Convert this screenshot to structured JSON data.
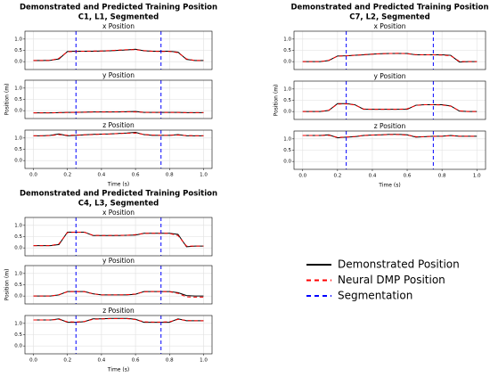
{
  "chart_data": [
    {
      "type": "line",
      "title": [
        "Demonstrated and Predicted Training Position",
        "C1, L1, Segmented"
      ],
      "xlabel": "Time (s)",
      "ylabel": "Position (m)",
      "x": [
        0,
        0.05,
        0.1,
        0.15,
        0.2,
        0.25,
        0.3,
        0.35,
        0.4,
        0.45,
        0.5,
        0.55,
        0.6,
        0.65,
        0.7,
        0.75,
        0.8,
        0.85,
        0.9,
        0.95,
        1.0
      ],
      "xlim": [
        -0.05,
        1.05
      ],
      "xticks": [
        {
          "value": 0,
          "label": "0.0"
        },
        0.2,
        0.4,
        0.6,
        0.8,
        {
          "value": 1,
          "label": "1.0"
        }
      ],
      "grid": true,
      "panels": [
        {
          "title": "x Position",
          "ylim": [
            -0.35,
            1.35
          ],
          "yticks": [
            {
              "value": 0,
              "label": "0.0"
            },
            0.5,
            {
              "value": 1,
              "label": "1.0"
            }
          ],
          "series": [
            {
              "name": "Demonstrated Position",
              "color": "#000000",
              "dash": "solid",
              "values": [
                0.05,
                0.05,
                0.06,
                0.12,
                0.45,
                0.46,
                0.46,
                0.46,
                0.47,
                0.48,
                0.5,
                0.52,
                0.55,
                0.48,
                0.46,
                0.46,
                0.46,
                0.42,
                0.1,
                0.05,
                0.05
              ]
            },
            {
              "name": "Neural DMP Position",
              "color": "#ff0000",
              "dash": "dashed",
              "values": [
                0.05,
                0.05,
                0.05,
                0.15,
                0.44,
                0.45,
                0.46,
                0.47,
                0.47,
                0.49,
                0.51,
                0.53,
                0.53,
                0.49,
                0.46,
                0.45,
                0.45,
                0.4,
                0.12,
                0.05,
                0.05
              ]
            }
          ],
          "segmentation": {
            "name": "Segmentation",
            "color": "#0000ff",
            "dash": "dashed",
            "x": [
              0.25,
              0.75
            ]
          }
        },
        {
          "title": "y Position",
          "ylim": [
            -0.35,
            1.35
          ],
          "yticks": [
            {
              "value": 0,
              "label": "0.0"
            },
            0.5,
            {
              "value": 1,
              "label": "1.0"
            }
          ],
          "series": [
            {
              "name": "Demonstrated Position",
              "color": "#000000",
              "dash": "solid",
              "values": [
                -0.1,
                -0.1,
                -0.1,
                -0.09,
                -0.08,
                -0.08,
                -0.07,
                -0.06,
                -0.06,
                -0.06,
                -0.06,
                -0.05,
                -0.04,
                -0.08,
                -0.08,
                -0.08,
                -0.08,
                -0.08,
                -0.09,
                -0.09,
                -0.09
              ]
            },
            {
              "name": "Neural DMP Position",
              "color": "#ff0000",
              "dash": "dashed",
              "values": [
                -0.1,
                -0.1,
                -0.1,
                -0.09,
                -0.08,
                -0.07,
                -0.07,
                -0.06,
                -0.06,
                -0.06,
                -0.05,
                -0.05,
                -0.06,
                -0.07,
                -0.08,
                -0.08,
                -0.08,
                -0.08,
                -0.09,
                -0.09,
                -0.09
              ]
            }
          ],
          "segmentation": {
            "name": "Segmentation",
            "color": "#0000ff",
            "dash": "dashed",
            "x": [
              0.25,
              0.75
            ]
          }
        },
        {
          "title": "z Position",
          "ylim": [
            -0.35,
            1.35
          ],
          "yticks": [
            {
              "value": 0,
              "label": "0.0"
            },
            0.5,
            {
              "value": 1,
              "label": "1.0"
            }
          ],
          "series": [
            {
              "name": "Demonstrated Position",
              "color": "#000000",
              "dash": "solid",
              "values": [
                1.1,
                1.1,
                1.12,
                1.18,
                1.1,
                1.12,
                1.14,
                1.16,
                1.17,
                1.18,
                1.2,
                1.22,
                1.25,
                1.15,
                1.12,
                1.12,
                1.12,
                1.15,
                1.1,
                1.1,
                1.1
              ]
            },
            {
              "name": "Neural DMP Position",
              "color": "#ff0000",
              "dash": "dashed",
              "values": [
                1.1,
                1.1,
                1.11,
                1.15,
                1.12,
                1.13,
                1.14,
                1.15,
                1.17,
                1.18,
                1.2,
                1.21,
                1.22,
                1.16,
                1.13,
                1.12,
                1.12,
                1.13,
                1.11,
                1.1,
                1.1
              ]
            }
          ],
          "segmentation": {
            "name": "Segmentation",
            "color": "#0000ff",
            "dash": "dashed",
            "x": [
              0.25,
              0.75
            ]
          }
        }
      ]
    },
    {
      "type": "line",
      "title": [
        "Demonstrated and Predicted Training Position",
        "C7, L2, Segmented"
      ],
      "xlabel": "Time (s)",
      "ylabel": "Position (m)",
      "x": [
        0,
        0.05,
        0.1,
        0.15,
        0.2,
        0.25,
        0.3,
        0.35,
        0.4,
        0.45,
        0.5,
        0.55,
        0.6,
        0.65,
        0.7,
        0.75,
        0.8,
        0.85,
        0.9,
        0.95,
        1.0
      ],
      "xlim": [
        -0.05,
        1.05
      ],
      "xticks": [
        {
          "value": 0,
          "label": "0.0"
        },
        0.2,
        0.4,
        0.6,
        0.8,
        {
          "value": 1,
          "label": "1.0"
        }
      ],
      "grid": true,
      "panels": [
        {
          "title": "x Position",
          "ylim": [
            -0.35,
            1.35
          ],
          "yticks": [
            {
              "value": 0,
              "label": "0.0"
            },
            0.5,
            {
              "value": 1,
              "label": "1.0"
            }
          ],
          "series": [
            {
              "name": "Demonstrated Position",
              "color": "#000000",
              "dash": "solid",
              "values": [
                0,
                0,
                0,
                0.05,
                0.25,
                0.26,
                0.28,
                0.3,
                0.33,
                0.35,
                0.36,
                0.36,
                0.36,
                0.3,
                0.3,
                0.3,
                0.3,
                0.28,
                -0.02,
                0,
                0
              ]
            },
            {
              "name": "Neural DMP Position",
              "color": "#ff0000",
              "dash": "dashed",
              "values": [
                0,
                0,
                0,
                0.06,
                0.24,
                0.26,
                0.28,
                0.31,
                0.33,
                0.35,
                0.36,
                0.37,
                0.35,
                0.31,
                0.3,
                0.3,
                0.29,
                0.26,
                0.01,
                0,
                0
              ]
            }
          ],
          "segmentation": {
            "name": "Segmentation",
            "color": "#0000ff",
            "dash": "dashed",
            "x": [
              0.25,
              0.75
            ]
          }
        },
        {
          "title": "y Position",
          "ylim": [
            -0.35,
            1.35
          ],
          "yticks": [
            {
              "value": 0,
              "label": "0.0"
            },
            0.5,
            {
              "value": 1,
              "label": "1.0"
            }
          ],
          "series": [
            {
              "name": "Demonstrated Position",
              "color": "#000000",
              "dash": "solid",
              "values": [
                0,
                0,
                0,
                0.05,
                0.35,
                0.35,
                0.3,
                0.1,
                0.1,
                0.1,
                0.1,
                0.1,
                0.1,
                0.28,
                0.3,
                0.3,
                0.3,
                0.25,
                0.02,
                0,
                0
              ]
            },
            {
              "name": "Neural DMP Position",
              "color": "#ff0000",
              "dash": "dashed",
              "values": [
                0,
                0,
                0,
                0.06,
                0.33,
                0.34,
                0.29,
                0.11,
                0.1,
                0.1,
                0.1,
                0.1,
                0.12,
                0.27,
                0.3,
                0.3,
                0.29,
                0.24,
                0.03,
                0,
                0
              ]
            }
          ],
          "segmentation": {
            "name": "Segmentation",
            "color": "#0000ff",
            "dash": "dashed",
            "x": [
              0.25,
              0.75
            ]
          }
        },
        {
          "title": "z Position",
          "ylim": [
            -0.35,
            1.35
          ],
          "yticks": [
            {
              "value": 0,
              "label": "0.0"
            },
            0.5,
            {
              "value": 1,
              "label": "1.0"
            }
          ],
          "series": [
            {
              "name": "Demonstrated Position",
              "color": "#000000",
              "dash": "solid",
              "values": [
                1.15,
                1.15,
                1.15,
                1.18,
                1.05,
                1.08,
                1.1,
                1.15,
                1.17,
                1.18,
                1.2,
                1.2,
                1.18,
                1.08,
                1.1,
                1.12,
                1.12,
                1.15,
                1.12,
                1.12,
                1.12
              ]
            },
            {
              "name": "Neural DMP Position",
              "color": "#ff0000",
              "dash": "dashed",
              "values": [
                1.15,
                1.15,
                1.15,
                1.16,
                1.07,
                1.08,
                1.11,
                1.15,
                1.17,
                1.18,
                1.19,
                1.19,
                1.17,
                1.1,
                1.1,
                1.11,
                1.12,
                1.14,
                1.12,
                1.12,
                1.12
              ]
            }
          ],
          "segmentation": {
            "name": "Segmentation",
            "color": "#0000ff",
            "dash": "dashed",
            "x": [
              0.25,
              0.75
            ]
          }
        }
      ]
    },
    {
      "type": "line",
      "title": [
        "Demonstrated and Predicted Training Position",
        "C4, L3, Segmented"
      ],
      "xlabel": "Time (s)",
      "ylabel": "Position (m)",
      "x": [
        0,
        0.05,
        0.1,
        0.15,
        0.2,
        0.25,
        0.3,
        0.35,
        0.4,
        0.45,
        0.5,
        0.55,
        0.6,
        0.65,
        0.7,
        0.75,
        0.8,
        0.85,
        0.9,
        0.95,
        1.0
      ],
      "xlim": [
        -0.05,
        1.05
      ],
      "xticks": [
        {
          "value": 0,
          "label": "0.0"
        },
        0.2,
        0.4,
        0.6,
        0.8,
        {
          "value": 1,
          "label": "1.0"
        }
      ],
      "grid": true,
      "panels": [
        {
          "title": "x Position",
          "ylim": [
            -0.35,
            1.35
          ],
          "yticks": [
            {
              "value": 0,
              "label": "0.0"
            },
            0.5,
            {
              "value": 1,
              "label": "1.0"
            }
          ],
          "series": [
            {
              "name": "Demonstrated Position",
              "color": "#000000",
              "dash": "solid",
              "values": [
                0.1,
                0.1,
                0.1,
                0.15,
                0.7,
                0.7,
                0.7,
                0.55,
                0.55,
                0.55,
                0.55,
                0.56,
                0.57,
                0.65,
                0.65,
                0.65,
                0.65,
                0.6,
                0.05,
                0.08,
                0.08
              ]
            },
            {
              "name": "Neural DMP Position",
              "color": "#ff0000",
              "dash": "dashed",
              "values": [
                0.1,
                0.1,
                0.1,
                0.18,
                0.68,
                0.7,
                0.69,
                0.56,
                0.55,
                0.55,
                0.56,
                0.56,
                0.59,
                0.64,
                0.65,
                0.65,
                0.64,
                0.55,
                0.08,
                0.08,
                0.08
              ]
            }
          ],
          "segmentation": {
            "name": "Segmentation",
            "color": "#0000ff",
            "dash": "dashed",
            "x": [
              0.25,
              0.75
            ]
          }
        },
        {
          "title": "y Position",
          "ylim": [
            -0.35,
            1.35
          ],
          "yticks": [
            {
              "value": 0,
              "label": "0.0"
            },
            0.5,
            {
              "value": 1,
              "label": "1.0"
            }
          ],
          "series": [
            {
              "name": "Demonstrated Position",
              "color": "#000000",
              "dash": "solid",
              "values": [
                0,
                0,
                0,
                0.05,
                0.2,
                0.2,
                0.2,
                0.1,
                0.05,
                0.05,
                0.05,
                0.05,
                0.08,
                0.2,
                0.2,
                0.2,
                0.2,
                0.15,
                0.02,
                0,
                0
              ]
            },
            {
              "name": "Neural DMP Position",
              "color": "#ff0000",
              "dash": "dashed",
              "values": [
                0,
                0,
                0,
                0.06,
                0.19,
                0.2,
                0.19,
                0.1,
                0.05,
                0.05,
                0.05,
                0.06,
                0.09,
                0.19,
                0.2,
                0.2,
                0.19,
                0.12,
                -0.04,
                -0.05,
                -0.05
              ]
            }
          ],
          "segmentation": {
            "name": "Segmentation",
            "color": "#0000ff",
            "dash": "dashed",
            "x": [
              0.25,
              0.75
            ]
          }
        },
        {
          "title": "z Position",
          "ylim": [
            -0.35,
            1.35
          ],
          "yticks": [
            {
              "value": 0,
              "label": "0.0"
            },
            0.5,
            {
              "value": 1,
              "label": "1.0"
            }
          ],
          "series": [
            {
              "name": "Demonstrated Position",
              "color": "#000000",
              "dash": "solid",
              "values": [
                1.15,
                1.15,
                1.15,
                1.2,
                1.05,
                1.05,
                1.08,
                1.2,
                1.2,
                1.22,
                1.22,
                1.22,
                1.18,
                1.05,
                1.05,
                1.05,
                1.05,
                1.2,
                1.12,
                1.12,
                1.12
              ]
            },
            {
              "name": "Neural DMP Position",
              "color": "#ff0000",
              "dash": "dashed",
              "values": [
                1.15,
                1.15,
                1.15,
                1.18,
                1.07,
                1.06,
                1.09,
                1.18,
                1.2,
                1.21,
                1.21,
                1.21,
                1.17,
                1.07,
                1.06,
                1.06,
                1.07,
                1.18,
                1.13,
                1.12,
                1.12
              ]
            }
          ],
          "segmentation": {
            "name": "Segmentation",
            "color": "#0000ff",
            "dash": "dashed",
            "x": [
              0.25,
              0.75
            ]
          }
        }
      ]
    }
  ]
}
